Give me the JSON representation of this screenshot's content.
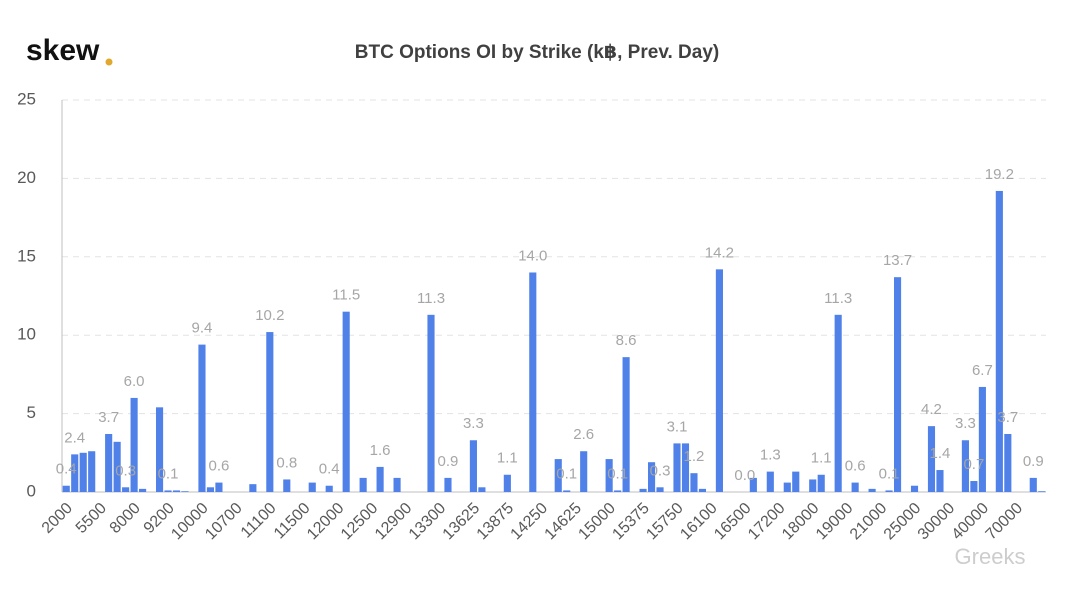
{
  "logo": "skew",
  "watermark": "Greeks",
  "chart_data": {
    "type": "bar",
    "title": "BTC Options OI by Strike (k฿, Prev. Day)",
    "color": "#4f81e8",
    "ylim": [
      0,
      25
    ],
    "yticks": [
      0,
      5,
      10,
      15,
      20,
      25
    ],
    "grid": true,
    "categories": [
      "2000",
      null,
      null,
      null,
      "5500",
      null,
      null,
      null,
      "8000",
      null,
      null,
      null,
      "9200",
      null,
      null,
      null,
      "10000",
      null,
      null,
      null,
      "10700",
      null,
      null,
      null,
      "11100",
      null,
      null,
      null,
      "11500",
      null,
      null,
      null,
      "12000",
      null,
      null,
      null,
      "12500",
      null,
      null,
      null,
      "12900",
      null,
      null,
      null,
      "13300",
      null,
      null,
      null,
      "13625",
      null,
      null,
      null,
      "13875",
      null,
      null,
      null,
      "14250",
      null,
      null,
      null,
      "14625",
      null,
      null,
      null,
      "15000",
      null,
      null,
      null,
      "15375",
      null,
      null,
      null,
      "15750",
      null,
      null,
      null,
      "16100",
      null,
      null,
      null,
      "16500",
      null,
      null,
      null,
      "17200",
      null,
      null,
      null,
      "18000",
      null,
      null,
      null,
      "19000",
      null,
      null,
      null,
      "21000",
      null,
      null,
      null,
      "25000",
      null,
      null,
      null,
      "30000",
      null,
      null,
      null,
      "40000",
      null,
      null,
      null,
      "70000",
      null,
      null,
      null
    ],
    "values": [
      0.4,
      2.4,
      2.5,
      2.6,
      0,
      3.7,
      3.2,
      0.3,
      6.0,
      0.2,
      0,
      5.4,
      0.1,
      0.1,
      0.05,
      0,
      9.4,
      0.3,
      0.6,
      0,
      0,
      0,
      0.5,
      0,
      10.2,
      0,
      0.8,
      0,
      0,
      0.6,
      0,
      0.4,
      0,
      11.5,
      0,
      0.9,
      0,
      1.6,
      0,
      0.9,
      0,
      0,
      0,
      11.3,
      0,
      0.9,
      0,
      0,
      3.3,
      0.3,
      0,
      0,
      1.1,
      0,
      0,
      14.0,
      0,
      0,
      2.1,
      0.1,
      0,
      2.6,
      0,
      0,
      2.1,
      0.1,
      8.6,
      0,
      0.2,
      1.9,
      0.3,
      0,
      3.1,
      3.1,
      1.2,
      0.2,
      0,
      14.2,
      0,
      0,
      0,
      0.9,
      0,
      1.3,
      0,
      0.6,
      1.3,
      0,
      0.8,
      1.1,
      0,
      11.3,
      0,
      0.6,
      0,
      0.2,
      0,
      0.1,
      13.7,
      0,
      0.4,
      0,
      4.2,
      1.4,
      0,
      0,
      3.3,
      0.7,
      6.7,
      0,
      19.2,
      3.7,
      0,
      0,
      0.9,
      0.05
    ],
    "value_labels": [
      "0.4",
      "2.4",
      null,
      null,
      null,
      "3.7",
      null,
      "0.3",
      "6.0",
      null,
      null,
      null,
      "0.1",
      null,
      null,
      null,
      "9.4",
      null,
      "0.6",
      null,
      null,
      null,
      null,
      null,
      "10.2",
      null,
      "0.8",
      null,
      null,
      null,
      null,
      "0.4",
      null,
      "11.5",
      null,
      null,
      null,
      "1.6",
      null,
      null,
      null,
      null,
      null,
      "11.3",
      null,
      "0.9",
      null,
      null,
      "3.3",
      null,
      null,
      null,
      "1.1",
      null,
      null,
      "14.0",
      null,
      null,
      null,
      "0.1",
      null,
      "2.6",
      null,
      null,
      null,
      "0.1",
      "8.6",
      null,
      null,
      null,
      "0.3",
      null,
      "3.1",
      null,
      "1.2",
      null,
      null,
      "14.2",
      null,
      null,
      "0.0",
      null,
      null,
      "1.3",
      null,
      null,
      null,
      null,
      null,
      "1.1",
      null,
      "11.3",
      null,
      "0.6",
      null,
      null,
      null,
      "0.1",
      "13.7",
      null,
      null,
      null,
      "4.2",
      "1.4",
      null,
      null,
      "3.3",
      "0.7",
      "6.7",
      null,
      "19.2",
      "3.7",
      null,
      null,
      "0.9",
      null
    ]
  }
}
